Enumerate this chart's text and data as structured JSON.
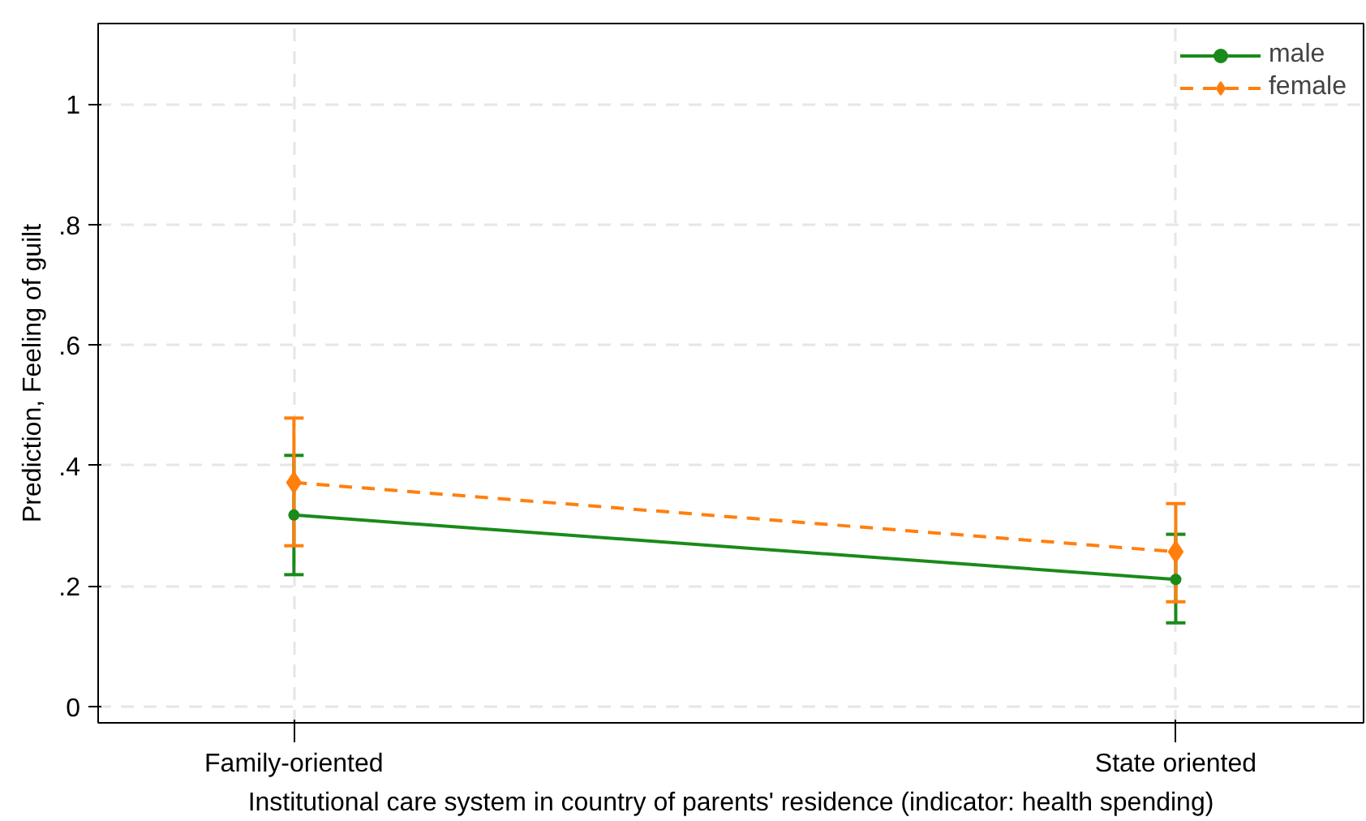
{
  "chart_data": {
    "type": "line",
    "xlabel": "Institutional care system in country of parents' residence (indicator: health spending)",
    "ylabel": "Prediction, Feeling of guilt",
    "categories": [
      "Family-oriented",
      "State oriented"
    ],
    "series": [
      {
        "name": "male",
        "color": "#1a8a1a",
        "values": [
          0.318,
          0.211
        ],
        "errors": [
          [
            0.219,
            0.417
          ],
          [
            0.139,
            0.286
          ]
        ],
        "marker": "circle",
        "line_style": "solid"
      },
      {
        "name": "female",
        "color": "#ff7f0e",
        "values": [
          0.372,
          0.257
        ],
        "errors": [
          [
            0.267,
            0.479
          ],
          [
            0.174,
            0.337
          ]
        ],
        "marker": "diamond",
        "line_style": "dashed"
      }
    ],
    "ylim": [
      -0.027,
      1.134
    ],
    "yticks": [
      {
        "value": 0,
        "label": "0"
      },
      {
        "value": 0.2,
        "label": ".2"
      },
      {
        "value": 0.4,
        "label": ".4"
      },
      {
        "value": 0.6,
        "label": ".6"
      },
      {
        "value": 0.8,
        "label": ".8"
      },
      {
        "value": 1,
        "label": "1"
      }
    ],
    "grid": true,
    "legend": "top right"
  }
}
